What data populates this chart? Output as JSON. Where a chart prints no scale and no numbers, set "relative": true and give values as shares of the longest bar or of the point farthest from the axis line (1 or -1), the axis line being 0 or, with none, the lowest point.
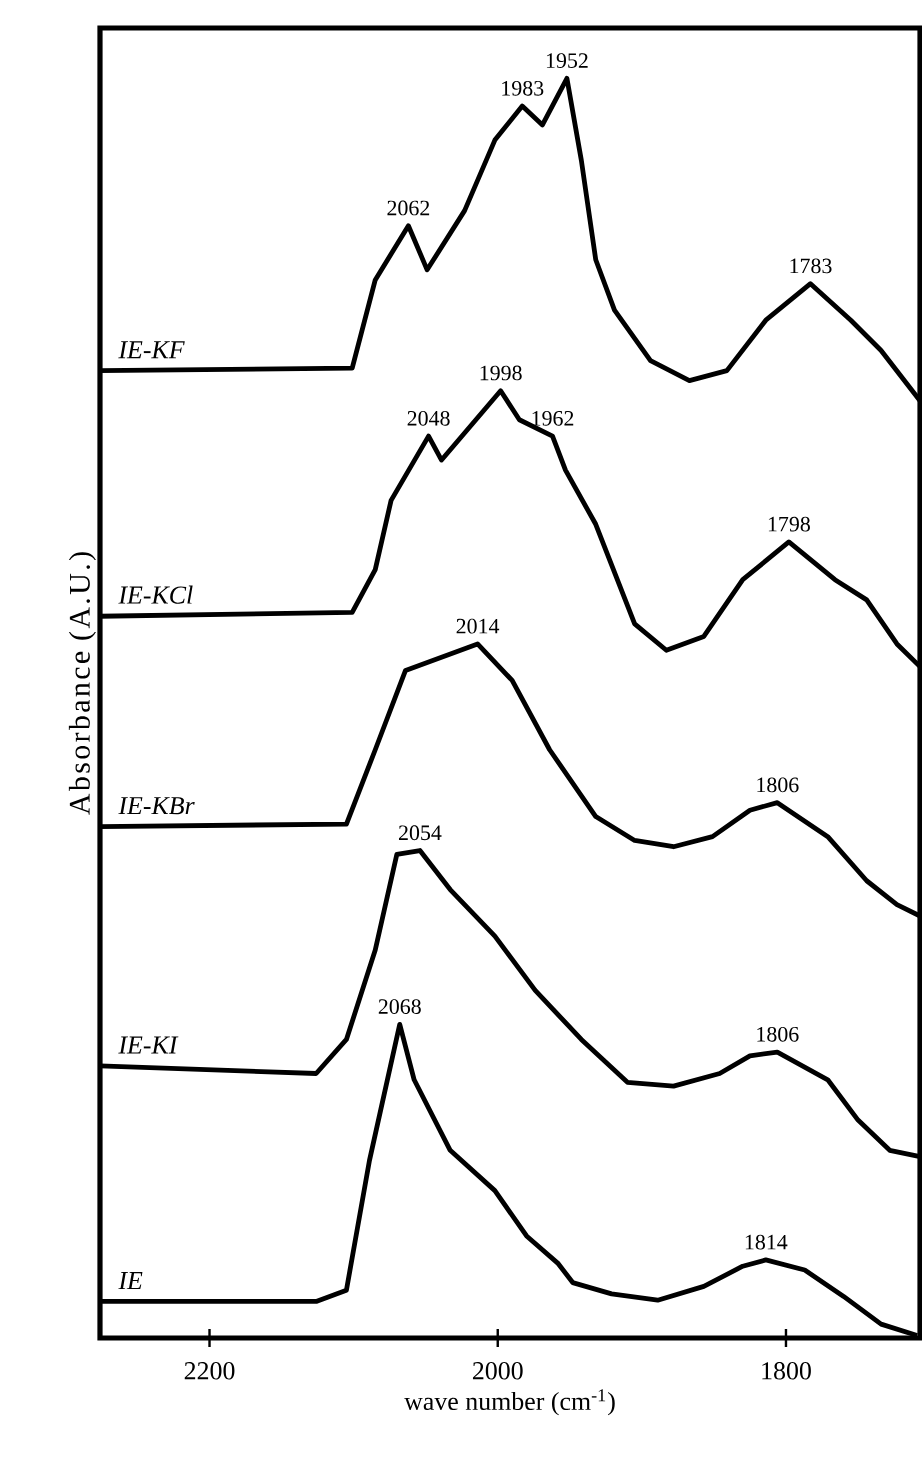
{
  "chart_data": {
    "type": "line",
    "relative": true,
    "xlabel": "wave number (cm$^{-1}$)",
    "ylabel": "Absorbance (A.U.)",
    "xlim": [
      2276,
      1707
    ],
    "xticks": [
      2200,
      2000,
      1800
    ],
    "tick_labels": "x",
    "marker": "none",
    "line_style": "solid",
    "series": [
      {
        "name": "IE-KF",
        "color": "#000000",
        "x": [
          2276,
          2101,
          2085,
          2062,
          2049,
          2023,
          2002,
          1983,
          1969,
          1952,
          1942,
          1932,
          1919,
          1894,
          1867,
          1841,
          1814,
          1783,
          1755,
          1734,
          1707
        ],
        "values": [
          0.768,
          0.77,
          0.84,
          0.883,
          0.848,
          0.895,
          0.951,
          0.978,
          0.963,
          1.0,
          0.935,
          0.856,
          0.816,
          0.776,
          0.76,
          0.768,
          0.808,
          0.837,
          0.808,
          0.784,
          0.744
        ]
      },
      {
        "name": "IE-KCl",
        "color": "#000000",
        "x": [
          2276,
          2101,
          2085,
          2074,
          2048,
          2039,
          1998,
          1985,
          1962,
          1953,
          1932,
          1905,
          1883,
          1857,
          1830,
          1798,
          1766,
          1744,
          1723,
          1707
        ],
        "values": [
          0.573,
          0.576,
          0.61,
          0.665,
          0.716,
          0.697,
          0.752,
          0.729,
          0.716,
          0.689,
          0.646,
          0.567,
          0.546,
          0.557,
          0.602,
          0.632,
          0.602,
          0.586,
          0.551,
          0.533
        ]
      },
      {
        "name": "IE-KBr",
        "color": "#000000",
        "x": [
          2276,
          2105,
          2085,
          2064,
          2014,
          1990,
          1964,
          1932,
          1905,
          1878,
          1851,
          1825,
          1806,
          1771,
          1744,
          1723,
          1707
        ],
        "values": [
          0.406,
          0.408,
          0.467,
          0.53,
          0.551,
          0.522,
          0.467,
          0.414,
          0.395,
          0.39,
          0.398,
          0.419,
          0.425,
          0.398,
          0.363,
          0.344,
          0.335
        ]
      },
      {
        "name": "IE-KI",
        "color": "#000000",
        "x": [
          2276,
          2126,
          2105,
          2085,
          2070,
          2054,
          2033,
          2002,
          1974,
          1942,
          1910,
          1878,
          1846,
          1825,
          1806,
          1771,
          1750,
          1728,
          1707
        ],
        "values": [
          0.216,
          0.21,
          0.237,
          0.308,
          0.384,
          0.387,
          0.356,
          0.319,
          0.276,
          0.237,
          0.203,
          0.2,
          0.21,
          0.224,
          0.227,
          0.205,
          0.173,
          0.149,
          0.144
        ]
      },
      {
        "name": "IE",
        "color": "#000000",
        "x": [
          2276,
          2126,
          2105,
          2089,
          2068,
          2058,
          2033,
          2002,
          1980,
          1958,
          1948,
          1921,
          1889,
          1857,
          1830,
          1814,
          1787,
          1760,
          1734,
          1709
        ],
        "values": [
          0.029,
          0.029,
          0.038,
          0.141,
          0.249,
          0.205,
          0.149,
          0.117,
          0.081,
          0.059,
          0.044,
          0.035,
          0.03,
          0.041,
          0.057,
          0.062,
          0.054,
          0.033,
          0.011,
          0.002
        ]
      }
    ],
    "annotations": [
      {
        "text": "2062",
        "x": 2062,
        "y": 0.883
      },
      {
        "text": "1983",
        "x": 1983,
        "y": 0.978
      },
      {
        "text": "1952",
        "x": 1952,
        "y": 1.0
      },
      {
        "text": "1783",
        "x": 1783,
        "y": 0.837
      },
      {
        "text": "2048",
        "x": 2048,
        "y": 0.716
      },
      {
        "text": "1998",
        "x": 1998,
        "y": 0.752
      },
      {
        "text": "1962",
        "x": 1962,
        "y": 0.716
      },
      {
        "text": "1798",
        "x": 1798,
        "y": 0.632
      },
      {
        "text": "2014",
        "x": 2014,
        "y": 0.551
      },
      {
        "text": "1806",
        "x": 1806,
        "y": 0.425
      },
      {
        "text": "2054",
        "x": 2054,
        "y": 0.387
      },
      {
        "text": "1806",
        "x": 1806,
        "y": 0.227
      },
      {
        "text": "2068",
        "x": 2068,
        "y": 0.249
      },
      {
        "text": "1814",
        "x": 1814,
        "y": 0.062
      }
    ]
  }
}
